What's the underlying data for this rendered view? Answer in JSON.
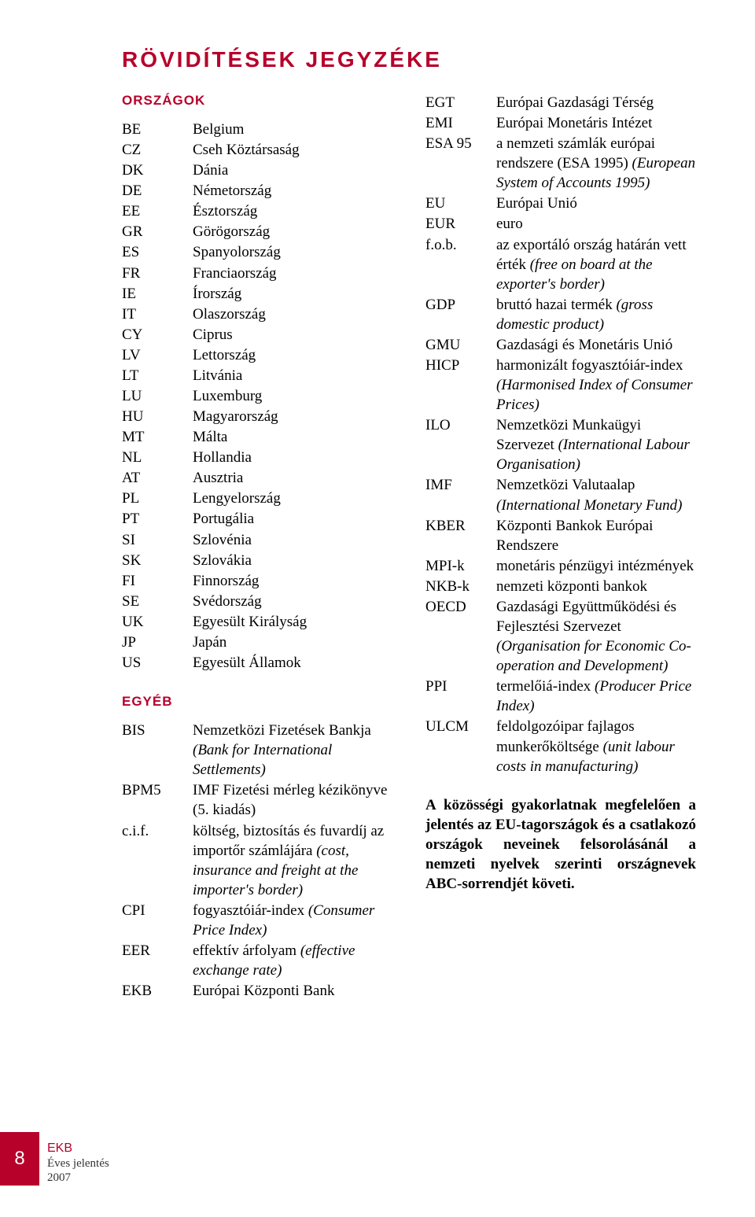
{
  "title": "RÖVIDÍTÉSEK JEGYZÉKE",
  "sections": {
    "countries_heading": "ORSZÁGOK",
    "other_heading": "EGYÉB"
  },
  "countries": [
    {
      "code": "BE",
      "name": "Belgium"
    },
    {
      "code": "CZ",
      "name": "Cseh Köztársaság"
    },
    {
      "code": "DK",
      "name": "Dánia"
    },
    {
      "code": "DE",
      "name": "Németország"
    },
    {
      "code": "EE",
      "name": "Észtország"
    },
    {
      "code": "GR",
      "name": "Görögország"
    },
    {
      "code": "ES",
      "name": "Spanyolország"
    },
    {
      "code": "FR",
      "name": "Franciaország"
    },
    {
      "code": "IE",
      "name": "Írország"
    },
    {
      "code": "IT",
      "name": "Olaszország"
    },
    {
      "code": "CY",
      "name": "Ciprus"
    },
    {
      "code": "LV",
      "name": "Lettország"
    },
    {
      "code": "LT",
      "name": "Litvánia"
    },
    {
      "code": "LU",
      "name": "Luxemburg"
    },
    {
      "code": "HU",
      "name": "Magyarország"
    },
    {
      "code": "MT",
      "name": "Málta"
    },
    {
      "code": "NL",
      "name": "Hollandia"
    },
    {
      "code": "AT",
      "name": "Ausztria"
    },
    {
      "code": "PL",
      "name": "Lengyelország"
    },
    {
      "code": "PT",
      "name": "Portugália"
    },
    {
      "code": "SI",
      "name": "Szlovénia"
    },
    {
      "code": "SK",
      "name": "Szlovákia"
    },
    {
      "code": "FI",
      "name": "Finnország"
    },
    {
      "code": "SE",
      "name": "Svédország"
    },
    {
      "code": "UK",
      "name": "Egyesült Királyság"
    },
    {
      "code": "JP",
      "name": "Japán"
    },
    {
      "code": "US",
      "name": "Egyesült Államok"
    }
  ],
  "other_left": [
    {
      "code": "BIS",
      "plain": "Nemzetközi Fizetések Bankja",
      "italic": "(Bank for International Settlements)"
    },
    {
      "code": "BPM5",
      "plain": "IMF Fizetési mérleg kézikönyve (5. kiadás)"
    },
    {
      "code": "c.i.f.",
      "plain": "költség, biztosítás és fuvardíj az importőr számlájára",
      "italic": "(cost, insurance and freight at the importer's border)"
    },
    {
      "code": "CPI",
      "plain": "fogyasztóiár-index",
      "italic": "(Consumer Price Index)"
    },
    {
      "code": "EER",
      "plain": "effektív árfolyam",
      "italic": "(effective exchange rate)"
    },
    {
      "code": "EKB",
      "plain": "Európai Központi Bank"
    }
  ],
  "other_right": [
    {
      "code": "EGT",
      "plain": "Európai Gazdasági Térség"
    },
    {
      "code": "EMI",
      "plain": "Európai Monetáris Intézet"
    },
    {
      "code": "ESA 95",
      "plain": "a nemzeti számlák európai rendszere (ESA 1995)",
      "italic": "(European System of Accounts 1995)"
    },
    {
      "code": "EU",
      "plain": "Európai Unió"
    },
    {
      "code": "EUR",
      "plain": "euro"
    },
    {
      "code": "f.o.b.",
      "plain": "az exportáló ország határán vett érték",
      "italic": "(free on board at the exporter's border)"
    },
    {
      "code": "GDP",
      "plain": "bruttó hazai termék",
      "italic": "(gross domestic product)"
    },
    {
      "code": "GMU",
      "plain": "Gazdasági és Monetáris Unió"
    },
    {
      "code": "HICP",
      "plain": "harmonizált fogyasztóiár-index",
      "italic": "(Harmonised Index of Consumer Prices)"
    },
    {
      "code": "ILO",
      "plain": "Nemzetközi Munkaügyi Szervezet",
      "italic": "(International Labour Organisation)"
    },
    {
      "code": "IMF",
      "plain": "Nemzetközi Valutaalap",
      "italic": "(International Monetary Fund)"
    },
    {
      "code": "KBER",
      "plain": "Központi Bankok Európai Rendszere"
    },
    {
      "code": "MPI-k",
      "plain": "monetáris pénzügyi intézmények"
    },
    {
      "code": "NKB-k",
      "plain": "nemzeti központi bankok"
    },
    {
      "code": "OECD",
      "plain": "Gazdasági Együttműködési és Fejlesztési Szervezet",
      "italic": "(Organisation for Economic Co-operation and Development)"
    },
    {
      "code": "PPI",
      "plain": "termelőiá-index",
      "italic": "(Producer Price Index)"
    },
    {
      "code": "ULCM",
      "plain": "feldolgozóipar fajlagos munkerőköltsége",
      "italic": "(unit labour costs in manufacturing)"
    }
  ],
  "closing_bold": "A közösségi gyakorlatnak megfelelően a jelentés az EU-tagországok és a csatlakozó országok neveinek felsorolásánál a nemzeti nyelvek szerinti országnevek ABC-sorrendjét követi.",
  "footer": {
    "page_number": "8",
    "line1": "EKB",
    "line2": "Éves jelentés",
    "line3": "2007"
  },
  "colors": {
    "accent": "#b7002a",
    "text": "#000000",
    "bg": "#ffffff"
  }
}
